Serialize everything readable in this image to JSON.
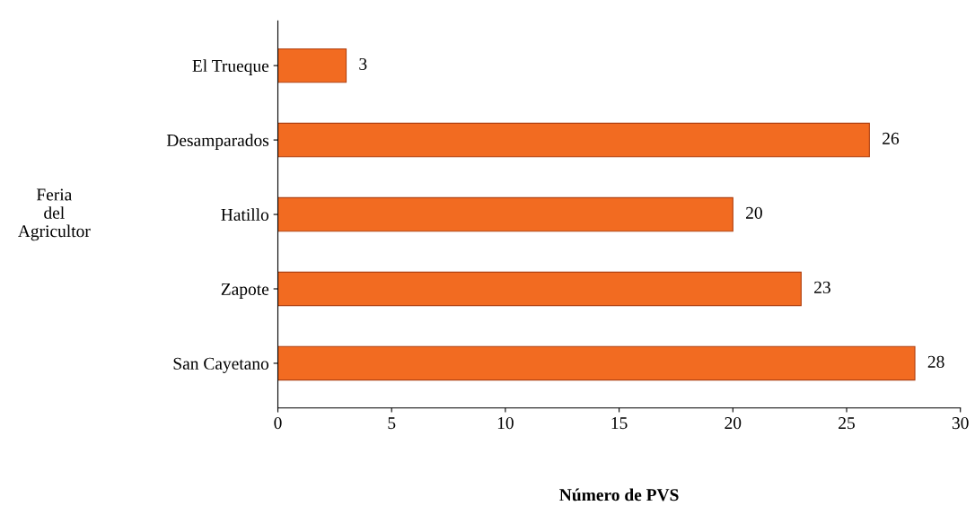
{
  "chart_data": {
    "type": "bar",
    "orientation": "horizontal",
    "categories": [
      "El Trueque",
      "Desamparados",
      "Hatillo",
      "Zapote",
      "San Cayetano"
    ],
    "values": [
      3,
      26,
      20,
      23,
      28
    ],
    "color": "#f26b21",
    "xlim": [
      0,
      30
    ],
    "xticks": [
      0,
      5,
      10,
      15,
      20,
      25,
      30
    ],
    "xlabel": "Número de PVS",
    "ylabel": "Feria\ndel\nAgricultor",
    "data_labels": true,
    "grid": false
  }
}
